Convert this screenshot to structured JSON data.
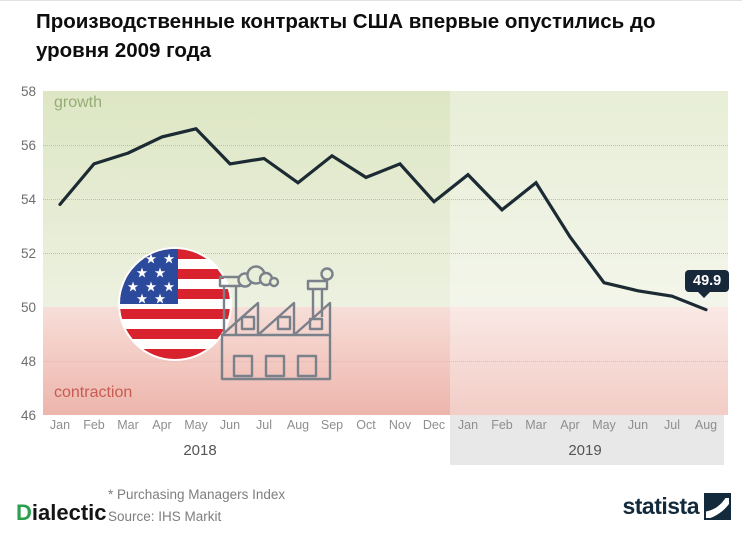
{
  "title": {
    "line1": "Производственные контракты США впервые опустились до",
    "line2": "уровня 2009 года"
  },
  "chart_data": {
    "type": "line",
    "x": [
      "Jan",
      "Feb",
      "Mar",
      "Apr",
      "May",
      "Jun",
      "Jul",
      "Aug",
      "Sep",
      "Oct",
      "Nov",
      "Dec",
      "Jan",
      "Feb",
      "Mar",
      "Apr",
      "May",
      "Jun",
      "Jul",
      "Aug"
    ],
    "years": [
      {
        "label": "2018",
        "months": 12
      },
      {
        "label": "2019",
        "months": 8
      }
    ],
    "series": [
      {
        "name": "Purchasing Managers Index",
        "values": [
          53.8,
          55.3,
          55.7,
          56.3,
          56.6,
          55.3,
          55.5,
          54.6,
          55.6,
          54.8,
          55.3,
          53.9,
          54.9,
          53.6,
          54.6,
          52.6,
          50.9,
          50.6,
          50.4,
          49.9
        ]
      }
    ],
    "ylim": [
      46,
      58
    ],
    "yticks": [
      58,
      56,
      54,
      52,
      50,
      48,
      46
    ],
    "grid": "dotted-horizontal",
    "legend": "none",
    "zones": [
      {
        "label": "growth",
        "range": [
          50,
          58
        ],
        "color_top": "#dde6c4",
        "color_bottom": "#edf1e0",
        "label_color": "#96ad74"
      },
      {
        "label": "contraction",
        "range": [
          46,
          50
        ],
        "color_top": "#f7ded8",
        "color_bottom": "#edb5ac",
        "label_color": "#c75b51"
      }
    ],
    "annotation": {
      "label": "49.9",
      "x_index": 19,
      "value": 49.9
    },
    "line_color": "#1b2a33",
    "annotation_bg": "#16283a",
    "band_2019_color": "#e8e8e8"
  },
  "footer": {
    "footnote": "* Purchasing Managers Index",
    "source": "Source: IHS Markit"
  },
  "branding": {
    "left_logo_first_letter": "D",
    "left_logo_rest": "ialectic",
    "left_logo_accent": "#2ca04f",
    "right_logo": "statista",
    "right_logo_color": "#122a3b"
  }
}
